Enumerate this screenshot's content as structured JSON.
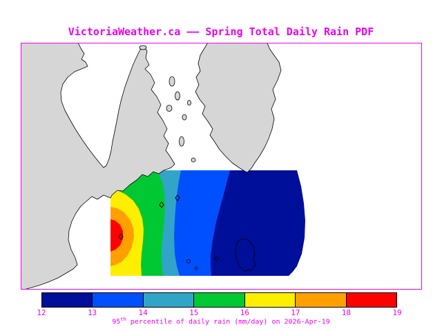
{
  "title": "VictoriaWeather.ca —— Spring Total Daily Rain PDF",
  "caption": {
    "prefix": "95",
    "sup": "th",
    "suffix": " percentile of daily rain (mm/day) on 2026-Apr-19"
  },
  "colors": {
    "accent": "#ee00ee",
    "land": "#d6d6d6",
    "coastline": "#000000",
    "water": "#ffffff"
  },
  "colorbar": {
    "ticks": [
      "12",
      "13",
      "14",
      "15",
      "16",
      "17",
      "18",
      "19"
    ],
    "segment_colors": [
      "#000f99",
      "#0050ff",
      "#31a5c8",
      "#00c832",
      "#ffee00",
      "#ffa000",
      "#ff0000"
    ]
  },
  "chart_data": {
    "type": "heatmap",
    "title": "Spring Total Daily Rain PDF",
    "variable": "95th percentile of daily rain (mm/day)",
    "date": "2026-Apr-19",
    "units": "mm/day",
    "scale_values": [
      12,
      13,
      14,
      15,
      16,
      17,
      18,
      19
    ],
    "scale_colors": [
      "#000f99",
      "#0050ff",
      "#31a5c8",
      "#00c832",
      "#ffee00",
      "#ffa000",
      "#ff0000"
    ],
    "legend_position": "bottom",
    "notes": "Filled contour map over the Victoria BC region; maximum (red, 18-19 mm/day) centered west near coast, minimum (navy, 12-13 mm/day) over eastern strait"
  }
}
